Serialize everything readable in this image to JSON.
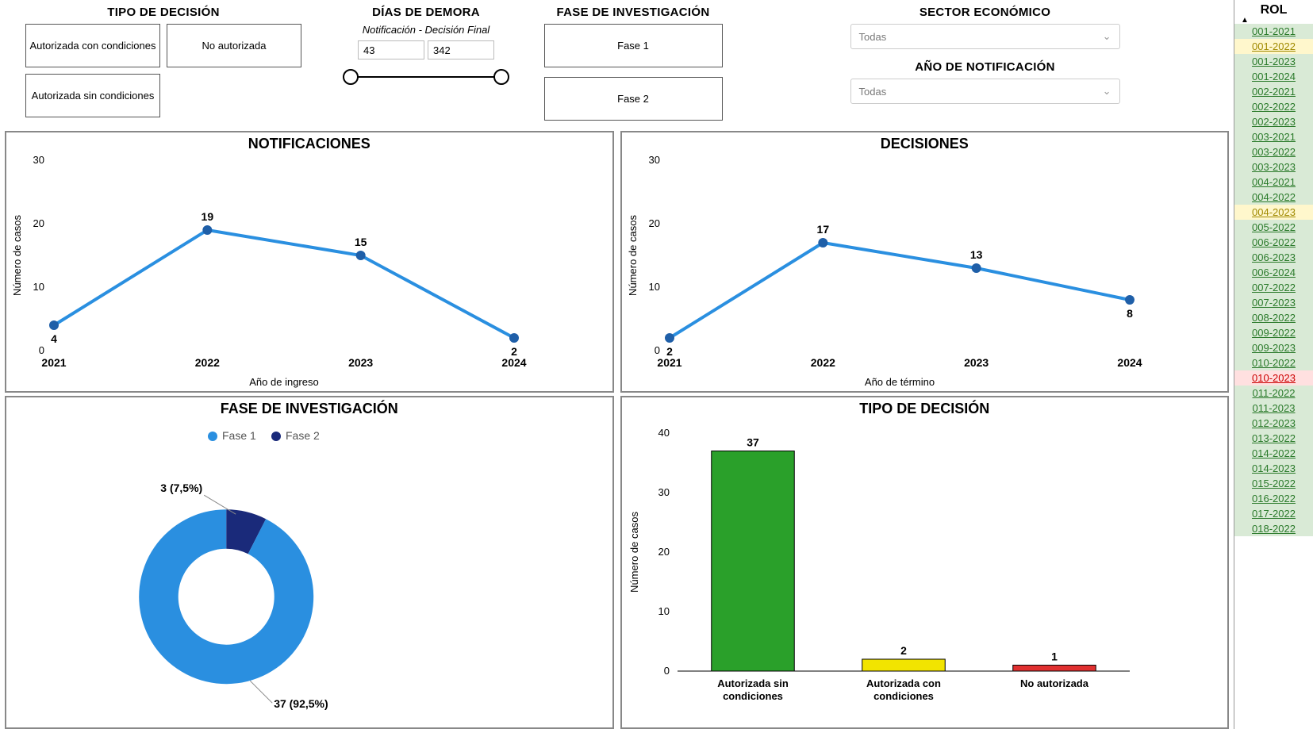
{
  "filters": {
    "tipo_decision": {
      "title": "TIPO DE DECISIÓN",
      "options": [
        "Autorizada con condiciones",
        "No autorizada",
        "Autorizada sin condiciones"
      ]
    },
    "dias_demora": {
      "title": "DÍAS DE DEMORA",
      "subtitle": "Notificación - Decisión Final",
      "min": "43",
      "max": "342"
    },
    "fase": {
      "title": "FASE DE INVESTIGACIÓN",
      "options": [
        "Fase 1",
        "Fase 2"
      ]
    },
    "sector": {
      "title": "SECTOR ECONÓMICO",
      "selected": "Todas"
    },
    "anio_notif": {
      "title": "AÑO DE NOTIFICACIÓN",
      "selected": "Todas"
    }
  },
  "notificaciones": {
    "title": "NOTIFICACIONES",
    "type": "line",
    "x_label": "Año de ingreso",
    "y_label": "Número de casos",
    "ylim": [
      0,
      30
    ],
    "ytick_step": 10,
    "categories": [
      "2021",
      "2022",
      "2023",
      "2024"
    ],
    "values": [
      4,
      19,
      15,
      2
    ],
    "line_color": "#2a8fe0",
    "marker_color": "#1f5fa8",
    "marker_radius": 6,
    "line_width": 4,
    "background_color": "#ffffff"
  },
  "decisiones": {
    "title": "DECISIONES",
    "type": "line",
    "x_label": "Año de término",
    "y_label": "Número de casos",
    "ylim": [
      0,
      30
    ],
    "ytick_step": 10,
    "categories": [
      "2021",
      "2022",
      "2023",
      "2024"
    ],
    "values": [
      2,
      17,
      13,
      8
    ],
    "line_color": "#2a8fe0",
    "marker_color": "#1f5fa8",
    "marker_radius": 6,
    "line_width": 4,
    "background_color": "#ffffff"
  },
  "fase_chart": {
    "title": "FASE DE INVESTIGACIÓN",
    "type": "donut",
    "legend": [
      "Fase 1",
      "Fase 2"
    ],
    "legend_colors": [
      "#2a8fe0",
      "#1a2a7a"
    ],
    "slices": [
      {
        "label": "37 (92,5%)",
        "value": 92.5,
        "color": "#2a8fe0"
      },
      {
        "label": "3 (7,5%)",
        "value": 7.5,
        "color": "#1a2a7a"
      }
    ],
    "inner_radius_ratio": 0.55,
    "background_color": "#ffffff"
  },
  "tipo_chart": {
    "title": "TIPO DE DECISIÓN",
    "type": "bar",
    "y_label": "Número de casos",
    "ylim": [
      0,
      40
    ],
    "ytick_step": 10,
    "categories": [
      "Autorizada sin condiciones",
      "Autorizada con condiciones",
      "No autorizada"
    ],
    "values": [
      37,
      2,
      1
    ],
    "bar_colors": [
      "#2aa02a",
      "#f2e400",
      "#e03030"
    ],
    "bar_border": "#000000",
    "background_color": "#ffffff"
  },
  "rol": {
    "header": "ROL",
    "items": [
      {
        "id": "001-2021",
        "c": "green"
      },
      {
        "id": "001-2022",
        "c": "yellow"
      },
      {
        "id": "001-2023",
        "c": "green"
      },
      {
        "id": "001-2024",
        "c": "green"
      },
      {
        "id": "002-2021",
        "c": "green"
      },
      {
        "id": "002-2022",
        "c": "green"
      },
      {
        "id": "002-2023",
        "c": "green"
      },
      {
        "id": "003-2021",
        "c": "green"
      },
      {
        "id": "003-2022",
        "c": "green"
      },
      {
        "id": "003-2023",
        "c": "green"
      },
      {
        "id": "004-2021",
        "c": "green"
      },
      {
        "id": "004-2022",
        "c": "green"
      },
      {
        "id": "004-2023",
        "c": "yellow"
      },
      {
        "id": "005-2022",
        "c": "green"
      },
      {
        "id": "006-2022",
        "c": "green"
      },
      {
        "id": "006-2023",
        "c": "green"
      },
      {
        "id": "006-2024",
        "c": "green"
      },
      {
        "id": "007-2022",
        "c": "green"
      },
      {
        "id": "007-2023",
        "c": "green"
      },
      {
        "id": "008-2022",
        "c": "green"
      },
      {
        "id": "009-2022",
        "c": "green"
      },
      {
        "id": "009-2023",
        "c": "green"
      },
      {
        "id": "010-2022",
        "c": "green"
      },
      {
        "id": "010-2023",
        "c": "red"
      },
      {
        "id": "011-2022",
        "c": "green"
      },
      {
        "id": "011-2023",
        "c": "green"
      },
      {
        "id": "012-2023",
        "c": "green"
      },
      {
        "id": "013-2022",
        "c": "green"
      },
      {
        "id": "014-2022",
        "c": "green"
      },
      {
        "id": "014-2023",
        "c": "green"
      },
      {
        "id": "015-2022",
        "c": "green"
      },
      {
        "id": "016-2022",
        "c": "green"
      },
      {
        "id": "017-2022",
        "c": "green"
      },
      {
        "id": "018-2022",
        "c": "green"
      }
    ]
  }
}
